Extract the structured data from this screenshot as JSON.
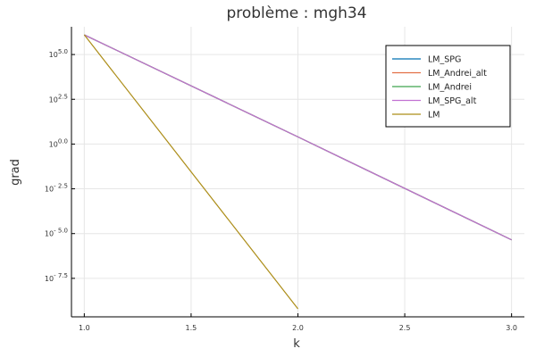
{
  "chart_data": {
    "type": "line",
    "title": "problème : mgh34",
    "xlabel": "k",
    "ylabel": "grad",
    "x_ticks": [
      {
        "value": 1.0,
        "label": "1.0"
      },
      {
        "value": 1.5,
        "label": "1.5"
      },
      {
        "value": 2.0,
        "label": "2.0"
      },
      {
        "value": 2.5,
        "label": "2.5"
      },
      {
        "value": 3.0,
        "label": "3.0"
      }
    ],
    "y_ticks": [
      {
        "value": 5.0,
        "base": "10",
        "exp": "5.0"
      },
      {
        "value": 2.5,
        "base": "10",
        "exp": "2.5"
      },
      {
        "value": 0.0,
        "base": "10",
        "exp": "0.0"
      },
      {
        "value": -2.5,
        "base": "10",
        "exp": "- 2.5"
      },
      {
        "value": -5.0,
        "base": "10",
        "exp": "- 5.0"
      },
      {
        "value": -7.5,
        "base": "10",
        "exp": "- 7.5"
      }
    ],
    "y_scale": "log10",
    "xlim": [
      0.94,
      3.06
    ],
    "ylim": [
      -9.65,
      6.55
    ],
    "grid": true,
    "legend_position": "top-right",
    "series": [
      {
        "name": "LM_SPG",
        "color": "#0072b2",
        "x": [
          1,
          2,
          3
        ],
        "y_log10": [
          6.1,
          0.4,
          -5.35
        ]
      },
      {
        "name": "LM_Andrei_alt",
        "color": "#e26f46",
        "x": [
          1,
          2,
          3
        ],
        "y_log10": [
          6.1,
          0.4,
          -5.35
        ]
      },
      {
        "name": "LM_Andrei",
        "color": "#3da44d",
        "x": [
          1,
          2,
          3
        ],
        "y_log10": [
          6.1,
          0.4,
          -5.35
        ]
      },
      {
        "name": "LM_SPG_alt",
        "color": "#c271d2",
        "x": [
          1,
          2,
          3
        ],
        "y_log10": [
          6.1,
          0.4,
          -5.35
        ]
      },
      {
        "name": "LM",
        "color": "#ac8d18",
        "x": [
          1,
          2
        ],
        "y_log10": [
          6.1,
          -9.2
        ]
      }
    ]
  }
}
